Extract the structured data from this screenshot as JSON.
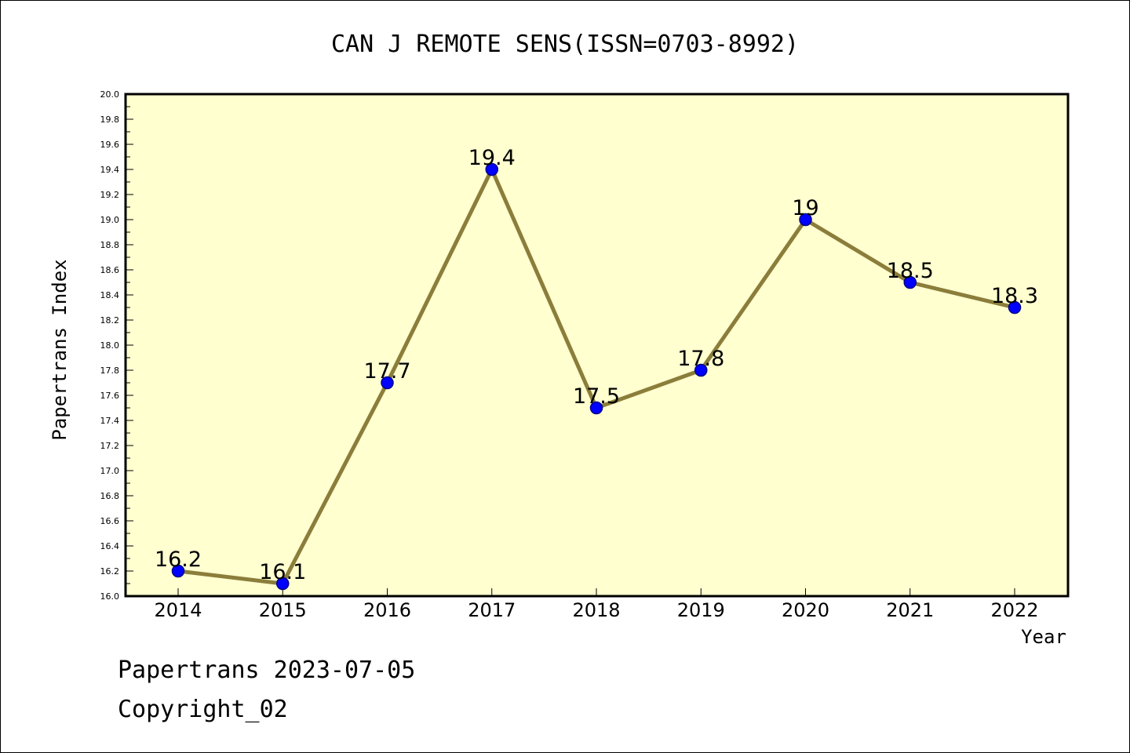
{
  "chart_data": {
    "type": "line",
    "title": "CAN J REMOTE SENS(ISSN=0703-8992)",
    "xlabel": "Year",
    "ylabel": "Papertrans Index",
    "categories": [
      "2014",
      "2015",
      "2016",
      "2017",
      "2018",
      "2019",
      "2020",
      "2021",
      "2022"
    ],
    "values": [
      16.2,
      16.1,
      17.7,
      19.4,
      17.5,
      17.8,
      19,
      18.5,
      18.3
    ],
    "data_labels": [
      "16.2",
      "16.1",
      "17.7",
      "19.4",
      "17.5",
      "17.8",
      "19",
      "18.5",
      "18.3"
    ],
    "ylim": [
      16.0,
      20.0
    ],
    "ytick_labels": [
      "16.0",
      "16.2",
      "16.4",
      "16.6",
      "16.8",
      "17.0",
      "17.2",
      "17.4",
      "17.6",
      "17.8",
      "18.0",
      "18.2",
      "18.4",
      "18.6",
      "18.8",
      "19.0",
      "19.2",
      "19.4",
      "19.6",
      "19.8",
      "20.0"
    ],
    "grid": false,
    "colors": {
      "plot_background": "#ffffd0",
      "line": "#8b7d3a",
      "marker": "#0000ff",
      "marker_edge": "#00008b"
    }
  },
  "footer": {
    "line1": "Papertrans 2023-07-05",
    "line2": "Copyright_02"
  }
}
